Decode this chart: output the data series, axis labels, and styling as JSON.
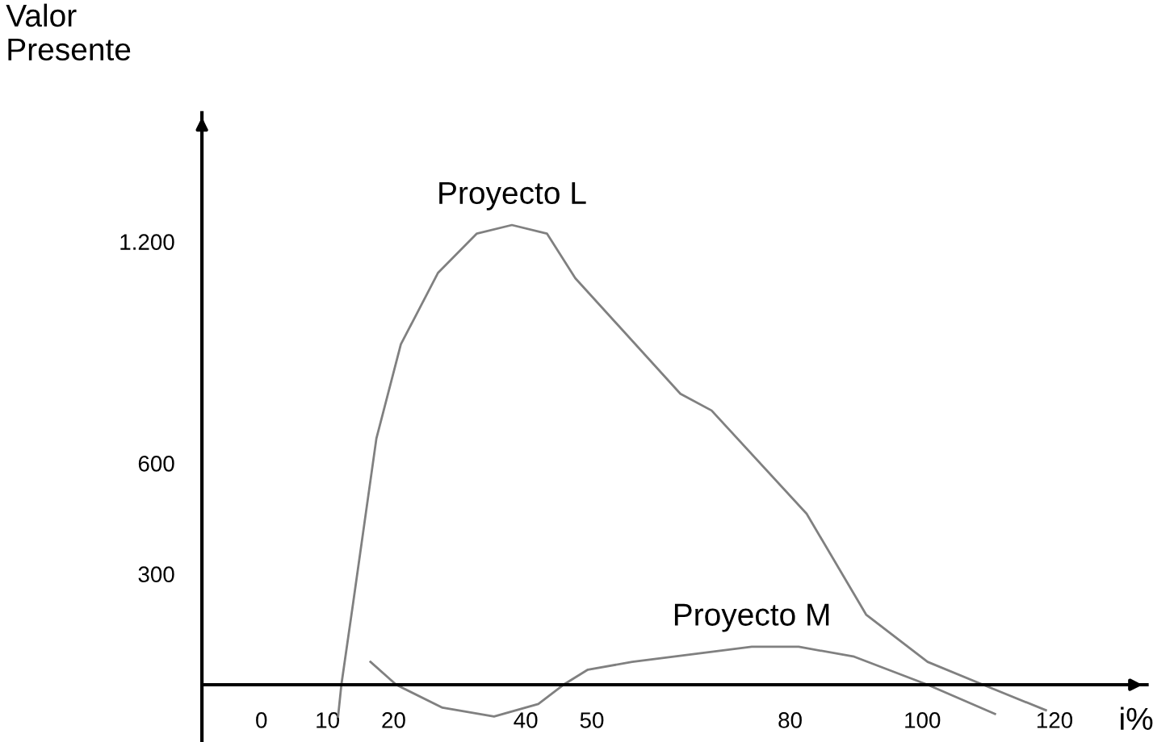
{
  "chart_data": {
    "type": "line",
    "ylabel": "Valor\nPresente",
    "xlabel": "i%",
    "xlim": [
      -9,
      134
    ],
    "ylim": [
      -155,
      1549
    ],
    "xticks": [
      0,
      10,
      20,
      40,
      50,
      80,
      100,
      120
    ],
    "yticks": [
      300,
      600,
      {
        "value": 1200,
        "label": "1.200"
      }
    ],
    "grid": false,
    "legend": false,
    "marker": "none",
    "line_style": "solid",
    "series": [
      {
        "name": "Proyecto L",
        "color": "#808080",
        "x": [
          11.6,
          12.1,
          13.9,
          17.4,
          21.1,
          26.7,
          32.6,
          37.9,
          43.2,
          47.5,
          63.4,
          68.1,
          82.5,
          91.5,
          100.8,
          109.2,
          118.7
        ],
        "values": [
          -86,
          0,
          224,
          667,
          922,
          1115,
          1222,
          1245,
          1222,
          1101,
          788,
          743,
          463,
          190,
          62,
          0,
          -69
        ]
      },
      {
        "name": "Proyecto M",
        "color": "#808080",
        "x": [
          16.5,
          20.4,
          27.4,
          35.2,
          41.9,
          45.7,
          49.4,
          56.1,
          74.2,
          81.3,
          89.7,
          100.8,
          111.0
        ],
        "values": [
          62,
          0,
          -62,
          -86,
          -52,
          0,
          41,
          62,
          103,
          103,
          76,
          0,
          -79
        ]
      }
    ]
  }
}
